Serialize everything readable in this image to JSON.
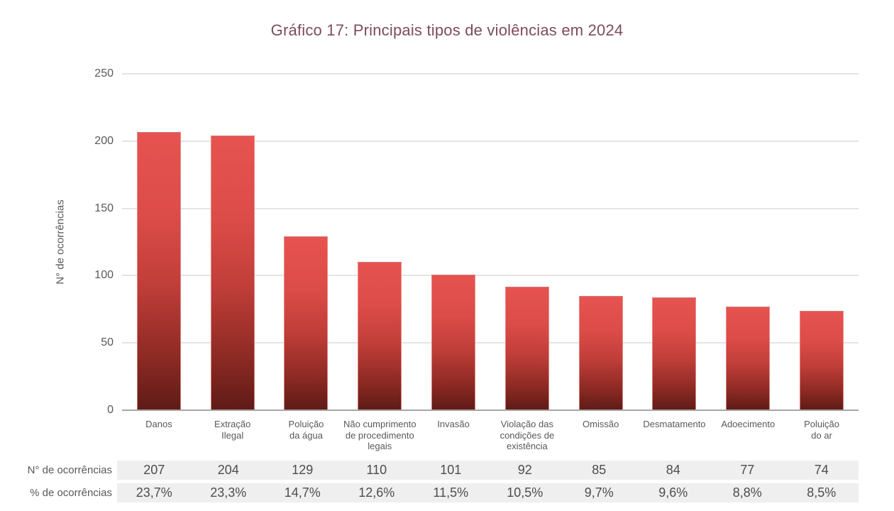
{
  "title": "Gráfico 17: Principais tipos de violências em 2024",
  "colors": {
    "title_text": "#7D4C5B",
    "bar_gradient_top": "#E65350",
    "bar_gradient_bottom": "#5E1B16",
    "gridline": "#E4E4E4",
    "axis_line": "#A6A6A6",
    "axis_text": "#595959",
    "table_row_background": "#EFEFEF",
    "table_value_text": "#4D4D4D"
  },
  "y_axis": {
    "label": "N° de ocorrências",
    "ticks": [
      250,
      200,
      150,
      100,
      50,
      0
    ],
    "max": 250
  },
  "chart_data": {
    "type": "bar",
    "title": "Gráfico 17: Principais tipos de violências em 2024",
    "categories": [
      "Danos",
      "Extração Ilegal",
      "Poluição da água",
      "Não cumprimento de procedimento legais",
      "Invasão",
      "Violação das condições de existência",
      "Omissão",
      "Desmatamento",
      "Adoecimento",
      "Poluição do ar"
    ],
    "categories_display": [
      [
        "Danos"
      ],
      [
        "Extração",
        "Ilegal"
      ],
      [
        "Poluição",
        "da água"
      ],
      [
        "Não cumprimento",
        "de procedimento",
        "legais"
      ],
      [
        "Invasão"
      ],
      [
        "Violação das",
        "condições de",
        "existência"
      ],
      [
        "Omissão"
      ],
      [
        "Desmatamento"
      ],
      [
        "Adoecimento"
      ],
      [
        "Poluição",
        "do ar"
      ]
    ],
    "series": [
      {
        "name": "N° de ocorrências",
        "values": [
          207,
          204,
          129,
          110,
          101,
          92,
          85,
          84,
          77,
          74
        ]
      },
      {
        "name": "% de ocorrências",
        "values": [
          "23,7%",
          "23,3%",
          "14,7%",
          "12,6%",
          "11,5%",
          "10,5%",
          "9,7%",
          "9,6%",
          "8,8%",
          "8,5%"
        ]
      }
    ],
    "xlabel": "",
    "ylabel": "N° de ocorrências",
    "ylim": [
      0,
      250
    ],
    "grid": true,
    "legend": false
  },
  "table": {
    "rows": [
      {
        "label": "N° de ocorrências",
        "values": [
          "207",
          "204",
          "129",
          "110",
          "101",
          "92",
          "85",
          "84",
          "77",
          "74"
        ]
      },
      {
        "label": "% de ocorrências",
        "values": [
          "23,7%",
          "23,3%",
          "14,7%",
          "12,6%",
          "11,5%",
          "10,5%",
          "9,7%",
          "9,6%",
          "8,8%",
          "8,5%"
        ]
      }
    ]
  }
}
